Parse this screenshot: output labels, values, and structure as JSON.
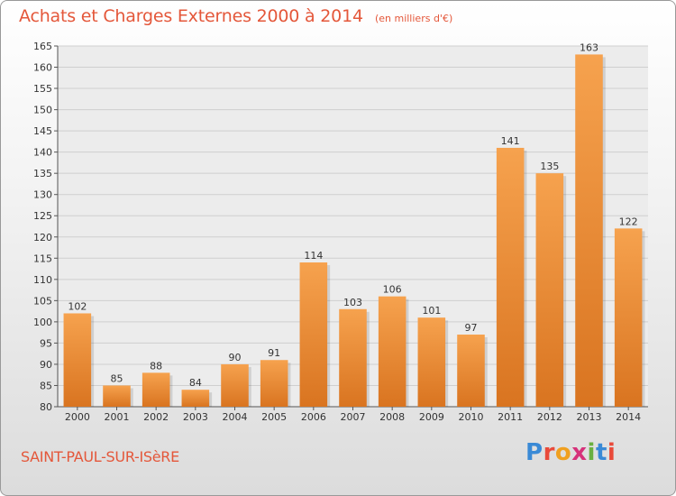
{
  "header": {
    "title": "Achats et Charges Externes 2000 à 2014",
    "subtitle": "(en milliers d'€)"
  },
  "footer": {
    "commune": "SAINT-PAUL-SUR-ISèRE",
    "logo_letters": [
      {
        "ch": "P",
        "color": "#3a8ad6"
      },
      {
        "ch": "r",
        "color": "#e94a3a"
      },
      {
        "ch": "o",
        "color": "#f0a020"
      },
      {
        "ch": "x",
        "color": "#d6327a"
      },
      {
        "ch": "i",
        "color": "#6ab040"
      },
      {
        "ch": "t",
        "color": "#3a8ad6"
      },
      {
        "ch": "i",
        "color": "#e94a3a"
      }
    ]
  },
  "chart_data": {
    "type": "bar",
    "title": "Achats et Charges Externes 2000 à 2014",
    "subtitle": "(en milliers d'€)",
    "categories": [
      "2000",
      "2001",
      "2002",
      "2003",
      "2004",
      "2005",
      "2006",
      "2007",
      "2008",
      "2009",
      "2010",
      "2011",
      "2012",
      "2013",
      "2014"
    ],
    "values": [
      102,
      85,
      88,
      84,
      90,
      91,
      114,
      103,
      106,
      101,
      97,
      141,
      135,
      163,
      122
    ],
    "ylim": [
      80,
      165
    ],
    "yticks": [
      80,
      85,
      90,
      95,
      100,
      105,
      110,
      115,
      120,
      125,
      130,
      135,
      140,
      145,
      150,
      155,
      160,
      165
    ],
    "grid": true,
    "bar_color_top": "#f6a24e",
    "bar_color_bottom": "#d97420",
    "xlabel": "",
    "ylabel": ""
  }
}
